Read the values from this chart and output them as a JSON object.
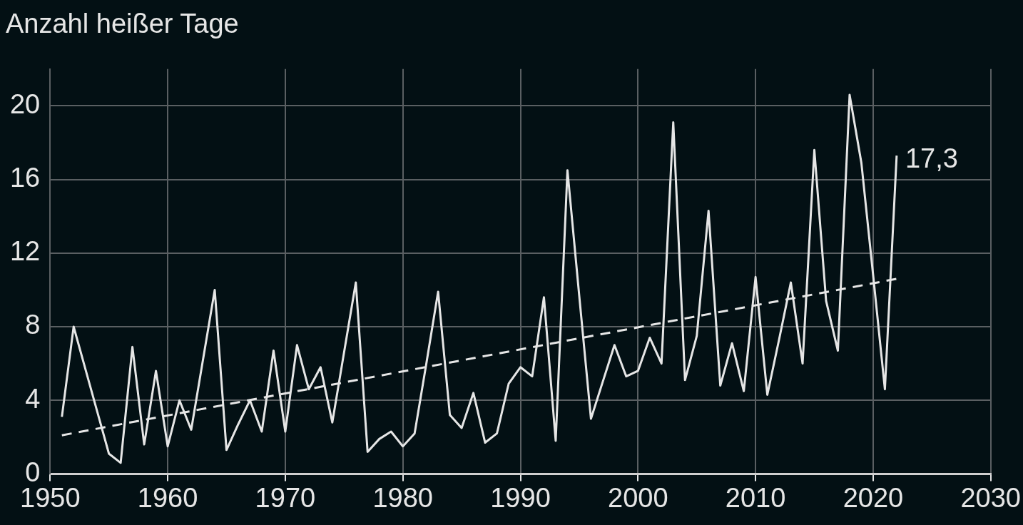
{
  "chart_data": {
    "type": "line",
    "title": "Anzahl heißer Tage",
    "x": [
      1951,
      1952,
      1953,
      1954,
      1955,
      1956,
      1957,
      1958,
      1959,
      1960,
      1961,
      1962,
      1963,
      1964,
      1965,
      1966,
      1967,
      1968,
      1969,
      1970,
      1971,
      1972,
      1973,
      1974,
      1975,
      1976,
      1977,
      1978,
      1979,
      1980,
      1981,
      1982,
      1983,
      1984,
      1985,
      1986,
      1987,
      1988,
      1989,
      1990,
      1991,
      1992,
      1993,
      1994,
      1995,
      1996,
      1997,
      1998,
      1999,
      2000,
      2001,
      2002,
      2003,
      2004,
      2005,
      2006,
      2007,
      2008,
      2009,
      2010,
      2011,
      2012,
      2013,
      2014,
      2015,
      2016,
      2017,
      2018,
      2019,
      2020,
      2021,
      2022
    ],
    "series": [
      {
        "color": "#e6e6e6",
        "values": [
          3.1,
          8.0,
          5.7,
          3.4,
          1.1,
          0.6,
          6.9,
          1.6,
          5.6,
          1.5,
          4.0,
          2.4,
          6.2,
          10.0,
          1.3,
          2.7,
          4.0,
          2.3,
          6.7,
          2.3,
          7.0,
          4.6,
          5.8,
          2.8,
          6.6,
          10.4,
          1.2,
          1.9,
          2.3,
          1.5,
          2.2,
          6.0,
          9.9,
          3.2,
          2.5,
          4.4,
          1.7,
          2.2,
          4.9,
          5.8,
          5.3,
          9.6,
          1.8,
          16.5,
          9.7,
          3.0,
          5.0,
          7.0,
          5.3,
          5.6,
          7.4,
          6.0,
          19.1,
          5.1,
          7.5,
          14.3,
          4.8,
          7.1,
          4.5,
          10.7,
          4.3,
          7.3,
          10.4,
          6.0,
          17.6,
          9.4,
          6.7,
          20.6,
          16.9,
          10.8,
          4.6,
          17.3
        ]
      },
      {
        "type": "line",
        "line_style": "dashed",
        "color": "#e6e6e6",
        "x": [
          1951,
          2022
        ],
        "values": [
          2.1,
          10.6
        ]
      }
    ],
    "xlim": [
      1950,
      2030
    ],
    "xticks": [
      1950,
      1960,
      1970,
      1980,
      1990,
      2000,
      2010,
      2020,
      2030
    ],
    "ylim": [
      0,
      22
    ],
    "yticks": [
      0,
      4,
      8,
      12,
      16,
      20
    ],
    "grid": true,
    "legend": false,
    "marker": "none",
    "line_style": "solid",
    "annotations": [
      {
        "text": "17,3",
        "x": 2022,
        "y": 17.3
      }
    ]
  }
}
